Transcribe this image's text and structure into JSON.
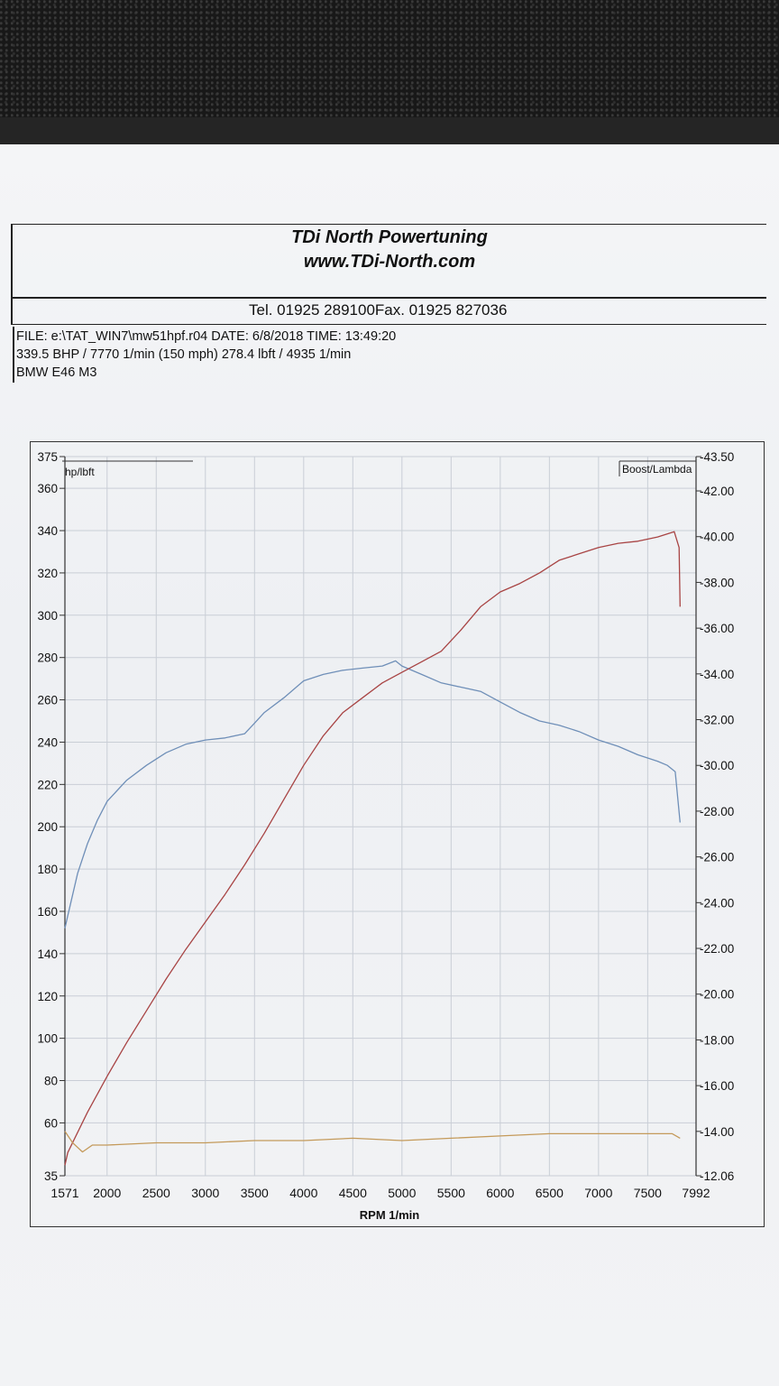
{
  "header": {
    "company": "TDi North Powertuning",
    "website": "www.TDi-North.com",
    "tel": "Tel. 01925 289100Fax. 01925 827036"
  },
  "info": {
    "line1": "FILE: e:\\TAT_WIN7\\mw51hpf.r04  DATE: 6/8/2018  TIME:  13:49:20",
    "line2": "339.5 BHP / 7770 1/min (150 mph)    278.4 lbft / 4935 1/min",
    "line3": "BMW E46 M3"
  },
  "chart_data": {
    "type": "line",
    "xlabel": "RPM  1/min",
    "left_axis_label": "hp/lbft",
    "right_axis_label": "Boost/Lambda",
    "xlim": [
      1571,
      7992
    ],
    "x_ticks": [
      "1571",
      "2000",
      "2500",
      "3000",
      "3500",
      "4000",
      "4500",
      "5000",
      "5500",
      "6000",
      "6500",
      "7000",
      "7500",
      "7992"
    ],
    "ylim_left": [
      35,
      375
    ],
    "y_left_ticks": [
      "375",
      "360",
      "340",
      "320",
      "300",
      "280",
      "260",
      "240",
      "220",
      "200",
      "180",
      "160",
      "140",
      "120",
      "100",
      "80",
      "60",
      "35"
    ],
    "ylim_right": [
      12.06,
      43.5
    ],
    "y_right_ticks": [
      "43.50",
      "42.00",
      "40.00",
      "38.00",
      "36.00",
      "34.00",
      "32.00",
      "30.00",
      "28.00",
      "26.00",
      "24.00",
      "22.00",
      "20.00",
      "18.00",
      "16.00",
      "14.00",
      "12.06"
    ],
    "grid": true,
    "series": [
      {
        "axis": "left",
        "color": "#6f8fb8",
        "points": [
          [
            1571,
            152
          ],
          [
            1600,
            158
          ],
          [
            1700,
            178
          ],
          [
            1800,
            192
          ],
          [
            1900,
            203
          ],
          [
            2000,
            212
          ],
          [
            2200,
            222
          ],
          [
            2400,
            229
          ],
          [
            2600,
            235
          ],
          [
            2800,
            239
          ],
          [
            3000,
            241
          ],
          [
            3200,
            242
          ],
          [
            3400,
            244
          ],
          [
            3500,
            249
          ],
          [
            3600,
            254
          ],
          [
            3800,
            261
          ],
          [
            4000,
            269
          ],
          [
            4200,
            272
          ],
          [
            4400,
            274
          ],
          [
            4600,
            275
          ],
          [
            4800,
            276
          ],
          [
            4935,
            278.4
          ],
          [
            5000,
            276
          ],
          [
            5200,
            272
          ],
          [
            5400,
            268
          ],
          [
            5600,
            266
          ],
          [
            5800,
            264
          ],
          [
            6000,
            259
          ],
          [
            6200,
            254
          ],
          [
            6400,
            250
          ],
          [
            6600,
            248
          ],
          [
            6800,
            245
          ],
          [
            7000,
            241
          ],
          [
            7200,
            238
          ],
          [
            7400,
            234
          ],
          [
            7600,
            231
          ],
          [
            7700,
            229
          ],
          [
            7780,
            226
          ],
          [
            7830,
            202
          ]
        ]
      },
      {
        "axis": "left",
        "color": "#a84444",
        "points": [
          [
            1571,
            40
          ],
          [
            1600,
            46
          ],
          [
            1800,
            65
          ],
          [
            2000,
            82
          ],
          [
            2200,
            98
          ],
          [
            2400,
            113
          ],
          [
            2600,
            128
          ],
          [
            2800,
            142
          ],
          [
            3000,
            155
          ],
          [
            3200,
            168
          ],
          [
            3400,
            182
          ],
          [
            3600,
            197
          ],
          [
            3800,
            213
          ],
          [
            4000,
            229
          ],
          [
            4200,
            243
          ],
          [
            4400,
            254
          ],
          [
            4600,
            261
          ],
          [
            4800,
            268
          ],
          [
            5000,
            273
          ],
          [
            5200,
            278
          ],
          [
            5400,
            283
          ],
          [
            5600,
            293
          ],
          [
            5800,
            304
          ],
          [
            6000,
            311
          ],
          [
            6200,
            315
          ],
          [
            6400,
            320
          ],
          [
            6600,
            326
          ],
          [
            6800,
            329
          ],
          [
            7000,
            332
          ],
          [
            7200,
            334
          ],
          [
            7400,
            335
          ],
          [
            7600,
            337
          ],
          [
            7770,
            339.5
          ],
          [
            7820,
            332
          ],
          [
            7830,
            304
          ]
        ]
      },
      {
        "axis": "right",
        "color": "#c49a5a",
        "points": [
          [
            1571,
            14.0
          ],
          [
            1650,
            13.5
          ],
          [
            1750,
            13.1
          ],
          [
            1850,
            13.4
          ],
          [
            2000,
            13.4
          ],
          [
            2500,
            13.5
          ],
          [
            3000,
            13.5
          ],
          [
            3500,
            13.6
          ],
          [
            4000,
            13.6
          ],
          [
            4500,
            13.7
          ],
          [
            5000,
            13.6
          ],
          [
            5500,
            13.7
          ],
          [
            6000,
            13.8
          ],
          [
            6500,
            13.9
          ],
          [
            7000,
            13.9
          ],
          [
            7500,
            13.9
          ],
          [
            7750,
            13.9
          ],
          [
            7830,
            13.7
          ]
        ]
      }
    ]
  }
}
